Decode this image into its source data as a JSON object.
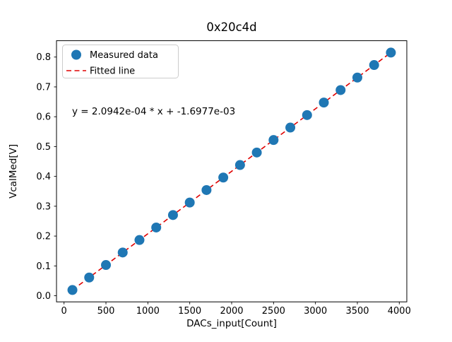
{
  "chart_data": {
    "type": "scatter",
    "title": "0x20c4d",
    "xlabel": "DACs_input[Count]",
    "ylabel": "VcalMed[V]",
    "x": [
      100,
      300,
      500,
      700,
      900,
      1100,
      1300,
      1500,
      1700,
      1900,
      2100,
      2300,
      2500,
      2700,
      2900,
      3100,
      3300,
      3500,
      3700,
      3900
    ],
    "y": [
      0.0192,
      0.0611,
      0.103,
      0.1449,
      0.1868,
      0.2287,
      0.2705,
      0.3124,
      0.3543,
      0.3962,
      0.4381,
      0.48,
      0.5219,
      0.5637,
      0.6056,
      0.6475,
      0.6894,
      0.7313,
      0.7732,
      0.815
    ],
    "fit": {
      "slope": 0.00020942,
      "intercept": -0.0016977
    },
    "annotation": {
      "text": "y = 2.0942e-04 * x + -1.6977e-03",
      "x": 100,
      "y": 0.615
    },
    "legend": [
      {
        "label": "Measured data",
        "marker": "circle"
      },
      {
        "label": "Fitted line",
        "marker": "dashed-line"
      }
    ],
    "legend_position": "upper left",
    "grid": false,
    "xlim": [
      -90,
      4090
    ],
    "ylim": [
      -0.0205,
      0.8548
    ],
    "xticks": [
      0,
      500,
      1000,
      1500,
      2000,
      2500,
      3000,
      3500,
      4000
    ],
    "xticklabels": [
      "0",
      "500",
      "1000",
      "1500",
      "2000",
      "2500",
      "3000",
      "3500",
      "4000"
    ],
    "yticks": [
      0.0,
      0.1,
      0.2,
      0.3,
      0.4,
      0.5,
      0.6,
      0.7,
      0.8
    ],
    "yticklabels": [
      "0.0",
      "0.1",
      "0.2",
      "0.3",
      "0.4",
      "0.5",
      "0.6",
      "0.7",
      "0.8"
    ],
    "colors": {
      "marker": "#1f77b4",
      "fit_line": "#e00000",
      "spine": "#000000",
      "legend_border": "#cccccc"
    }
  }
}
